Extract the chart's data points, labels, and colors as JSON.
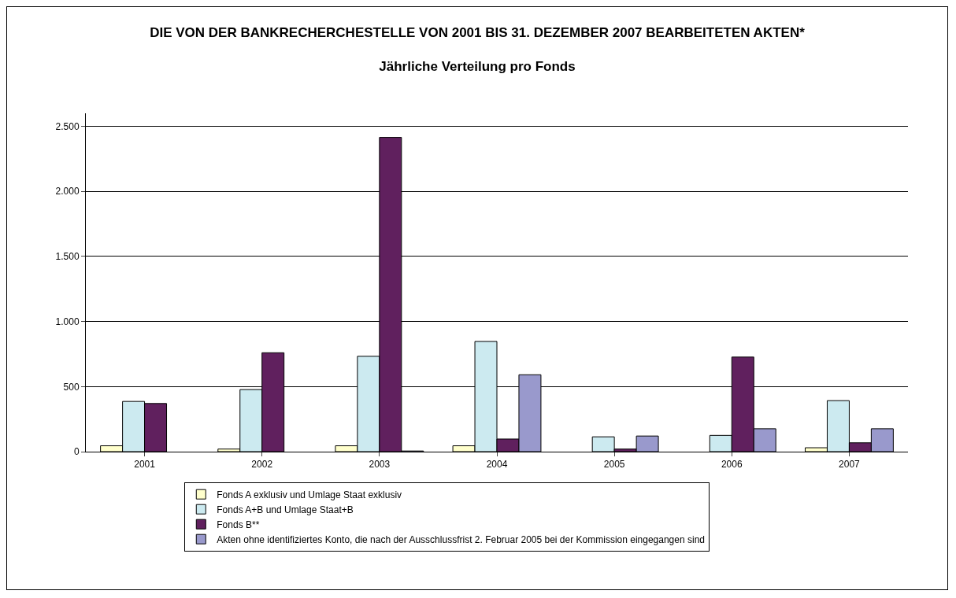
{
  "chart_data": {
    "type": "bar",
    "title": "DIE VON DER BANKRECHERCHESTELLE VON 2001 BIS 31. DEZEMBER 2007 BEARBEITETEN AKTEN*",
    "subtitle": "Jährliche Verteilung pro Fonds",
    "categories": [
      "2001",
      "2002",
      "2003",
      "2004",
      "2005",
      "2006",
      "2007"
    ],
    "series": [
      {
        "name": "Fonds A exklusiv und Umlage Staat exklusiv",
        "color": "#ffffcc",
        "values": [
          45,
          20,
          45,
          45,
          null,
          null,
          30
        ]
      },
      {
        "name": "Fonds A+B und Umlage Staat+B",
        "color": "#cceaf0",
        "values": [
          386,
          477,
          733,
          847,
          114,
          125,
          392
        ]
      },
      {
        "name": "Fonds B**",
        "color": "#60205e",
        "values": [
          370,
          760,
          2415,
          97,
          20,
          727,
          68
        ]
      },
      {
        "name": "Akten ohne identifiziertes Konto, die nach der Ausschlussfrist 2. Februar 2005 bei der Kommission eingegangen sind",
        "color": "#9999cc",
        "values": [
          null,
          null,
          5,
          591,
          120,
          176,
          176
        ]
      }
    ],
    "ylim": [
      0,
      2600
    ],
    "yticks": [
      0,
      {
        "value": 500,
        "label": "500"
      },
      {
        "value": 1000,
        "label": "1.000"
      },
      {
        "value": 1500,
        "label": "1.500"
      },
      {
        "value": 2000,
        "label": "2.000"
      },
      {
        "value": 2500,
        "label": "2.500"
      }
    ],
    "grid": "y",
    "legend": "bottom"
  }
}
